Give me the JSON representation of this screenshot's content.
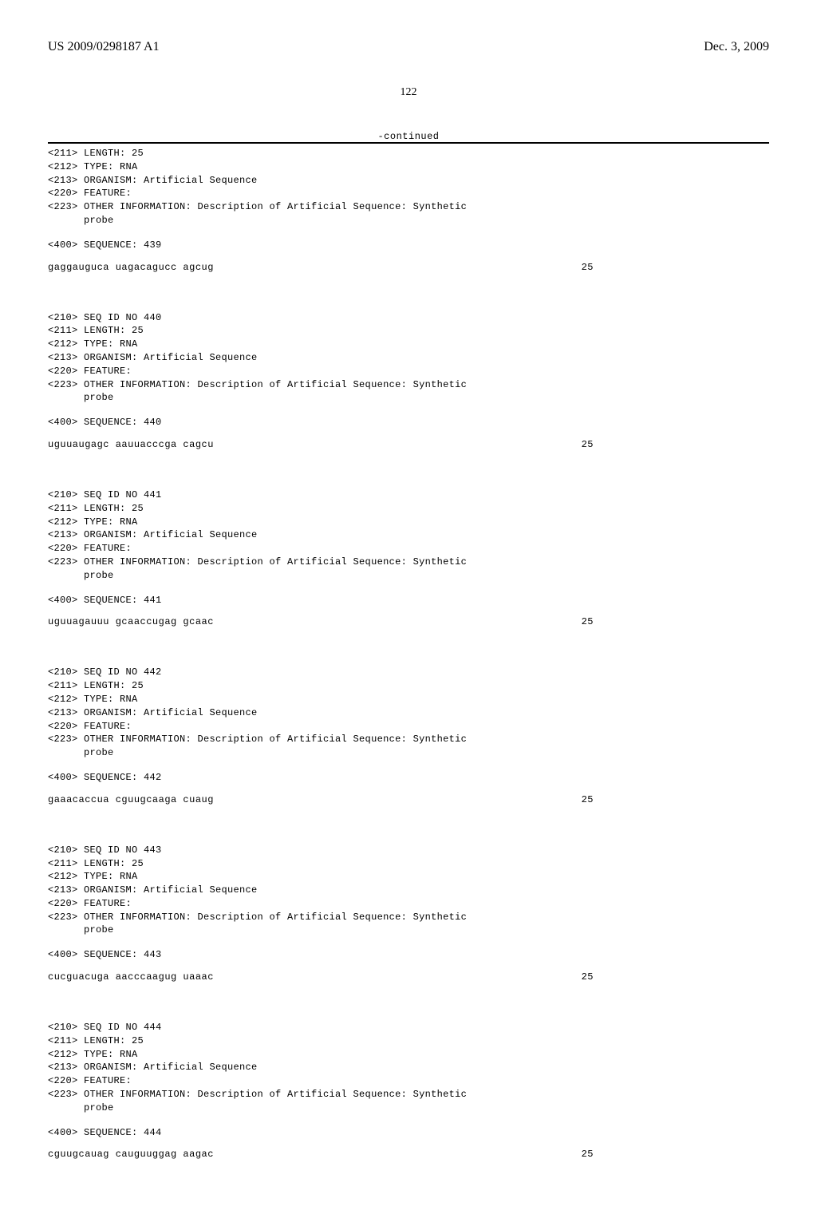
{
  "header": {
    "publication_number": "US 2009/0298187 A1",
    "date": "Dec. 3, 2009"
  },
  "page_number": "122",
  "continued_label": "-continued",
  "entries": [
    {
      "meta_lines": [
        "<211> LENGTH: 25",
        "<212> TYPE: RNA",
        "<213> ORGANISM: Artificial Sequence",
        "<220> FEATURE:",
        "<223> OTHER INFORMATION: Description of Artificial Sequence: Synthetic",
        "      probe"
      ],
      "sequence_header": "<400> SEQUENCE: 439",
      "sequence_text": "gaggauguca uagacagucc agcug",
      "sequence_len": "25"
    },
    {
      "meta_lines": [
        "<210> SEQ ID NO 440",
        "<211> LENGTH: 25",
        "<212> TYPE: RNA",
        "<213> ORGANISM: Artificial Sequence",
        "<220> FEATURE:",
        "<223> OTHER INFORMATION: Description of Artificial Sequence: Synthetic",
        "      probe"
      ],
      "sequence_header": "<400> SEQUENCE: 440",
      "sequence_text": "uguuaugagc aauuacccga cagcu",
      "sequence_len": "25"
    },
    {
      "meta_lines": [
        "<210> SEQ ID NO 441",
        "<211> LENGTH: 25",
        "<212> TYPE: RNA",
        "<213> ORGANISM: Artificial Sequence",
        "<220> FEATURE:",
        "<223> OTHER INFORMATION: Description of Artificial Sequence: Synthetic",
        "      probe"
      ],
      "sequence_header": "<400> SEQUENCE: 441",
      "sequence_text": "uguuagauuu gcaaccugag gcaac",
      "sequence_len": "25"
    },
    {
      "meta_lines": [
        "<210> SEQ ID NO 442",
        "<211> LENGTH: 25",
        "<212> TYPE: RNA",
        "<213> ORGANISM: Artificial Sequence",
        "<220> FEATURE:",
        "<223> OTHER INFORMATION: Description of Artificial Sequence: Synthetic",
        "      probe"
      ],
      "sequence_header": "<400> SEQUENCE: 442",
      "sequence_text": "gaaacaccua cguugcaaga cuaug",
      "sequence_len": "25"
    },
    {
      "meta_lines": [
        "<210> SEQ ID NO 443",
        "<211> LENGTH: 25",
        "<212> TYPE: RNA",
        "<213> ORGANISM: Artificial Sequence",
        "<220> FEATURE:",
        "<223> OTHER INFORMATION: Description of Artificial Sequence: Synthetic",
        "      probe"
      ],
      "sequence_header": "<400> SEQUENCE: 443",
      "sequence_text": "cucguacuga aacccaagug uaaac",
      "sequence_len": "25"
    },
    {
      "meta_lines": [
        "<210> SEQ ID NO 444",
        "<211> LENGTH: 25",
        "<212> TYPE: RNA",
        "<213> ORGANISM: Artificial Sequence",
        "<220> FEATURE:",
        "<223> OTHER INFORMATION: Description of Artificial Sequence: Synthetic",
        "      probe"
      ],
      "sequence_header": "<400> SEQUENCE: 444",
      "sequence_text": "cguugcauag cauguuggag aagac",
      "sequence_len": "25"
    }
  ]
}
